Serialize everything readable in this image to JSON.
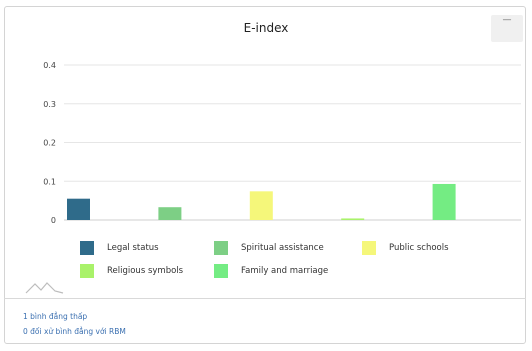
{
  "chart_data": {
    "type": "bar",
    "title": "E-index",
    "xlabel": "",
    "ylabel": "",
    "ylim": [
      0,
      0.4
    ],
    "yticks": [
      0,
      0.1,
      0.2,
      0.3,
      0.4
    ],
    "yticklabels": [
      "0",
      "0.1",
      "0.2",
      "0.3",
      "0.4"
    ],
    "grid": true,
    "legend_position": "bottom",
    "series": [
      {
        "name": "Legal status",
        "value": 0.055,
        "color": "#2f6b8a"
      },
      {
        "name": "Spiritual assistance",
        "value": 0.033,
        "color": "#7dcf85"
      },
      {
        "name": "Public schools",
        "value": 0.074,
        "color": "#f5f77a"
      },
      {
        "name": "Religious symbols",
        "value": 0.004,
        "color": "#a9f26a"
      },
      {
        "name": "Family and marriage",
        "value": 0.093,
        "color": "#74ec83"
      }
    ]
  },
  "footer": {
    "line1": "1 bình đẳng thấp",
    "line2": "0 đối xử bình đẳng với RBM"
  },
  "icons": {
    "menu": "hamburger-menu-icon",
    "logo": "mountain-logo-icon"
  }
}
